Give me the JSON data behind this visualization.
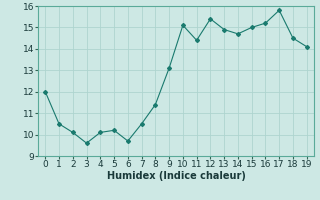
{
  "x": [
    0,
    1,
    2,
    3,
    4,
    5,
    6,
    7,
    8,
    9,
    10,
    11,
    12,
    13,
    14,
    15,
    16,
    17,
    18,
    19
  ],
  "y": [
    12.0,
    10.5,
    10.1,
    9.6,
    10.1,
    10.2,
    9.7,
    10.5,
    11.4,
    13.1,
    15.1,
    14.4,
    15.4,
    14.9,
    14.7,
    15.0,
    15.2,
    15.8,
    14.5,
    14.1
  ],
  "line_color": "#1a7a6e",
  "marker": "D",
  "marker_size": 2.0,
  "bg_color": "#cde8e4",
  "grid_color": "#aed4cf",
  "xlabel": "Humidex (Indice chaleur)",
  "xlabel_fontsize": 7,
  "tick_fontsize": 6.5,
  "ylim": [
    9,
    16
  ],
  "xlim": [
    -0.5,
    19.5
  ],
  "yticks": [
    9,
    10,
    11,
    12,
    13,
    14,
    15,
    16
  ],
  "xticks": [
    0,
    1,
    2,
    3,
    4,
    5,
    6,
    7,
    8,
    9,
    10,
    11,
    12,
    13,
    14,
    15,
    16,
    17,
    18,
    19
  ]
}
